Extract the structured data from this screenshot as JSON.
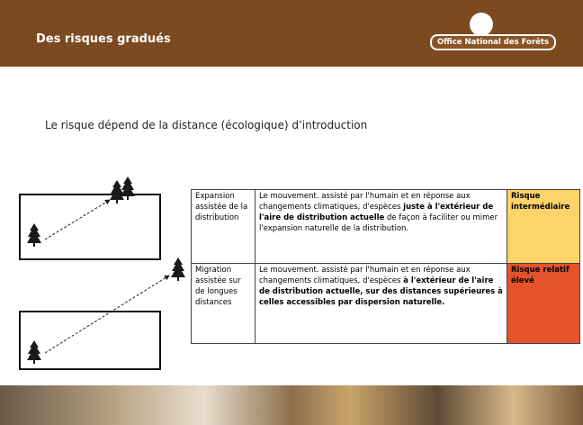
{
  "header": {
    "title": "Des risques gradués",
    "logo_text": "Office National des Forêts"
  },
  "subtitle": "Le risque dépend de la distance (écologique) d’introduction",
  "table": {
    "rows": [
      {
        "label": "Expansion assistée de la distribution",
        "description": [
          {
            "text": "Le mouvement. assisté par l'humain et en réponse aux changements climatiques, d'espèces ",
            "bold": false
          },
          {
            "text": "juste à l'extérieur de l'aire de distribution actuelle",
            "bold": true
          },
          {
            "text": " de façon à faciliter ou mimer l'expansion naturelle de la distribution.",
            "bold": false
          }
        ],
        "risk": "Risque intermédiaire",
        "color": "#fdd36a"
      },
      {
        "label": "Migration assistée sur de longues distances",
        "description": [
          {
            "text": "Le mouvement. assisté par l'humain et en réponse aux changements climatiques, d'espèces ",
            "bold": false
          },
          {
            "text": "à l'extérieur de l'aire de distribution actuelle, sur des distances supérieures à celles accessibles par dispersion naturelle.",
            "bold": true
          }
        ],
        "risk": "Risque relatif élevé",
        "color": "#e5532c"
      }
    ]
  }
}
